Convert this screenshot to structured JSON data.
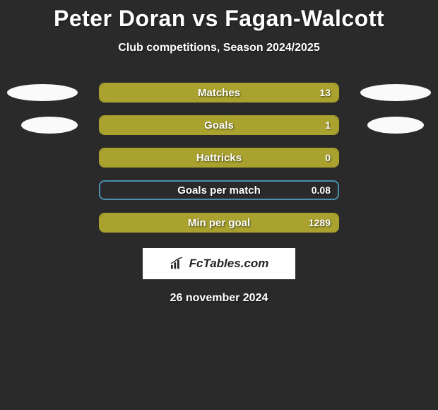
{
  "title": "Peter Doran vs Fagan-Walcott",
  "subtitle": "Club competitions, Season 2024/2025",
  "colors": {
    "bar_fill": "#a9a22e",
    "bar_border": "#a9a22e",
    "bar_border_alt": "#4a8fb0",
    "ellipse": "#fafafa"
  },
  "stats": [
    {
      "label": "Matches",
      "value": "13",
      "fill_pct": 100,
      "border": "#a9a22e",
      "show_left_ellipse": true,
      "show_right_ellipse": true,
      "ellipse_small": false
    },
    {
      "label": "Goals",
      "value": "1",
      "fill_pct": 100,
      "border": "#a9a22e",
      "show_left_ellipse": true,
      "show_right_ellipse": true,
      "ellipse_small": true
    },
    {
      "label": "Hattricks",
      "value": "0",
      "fill_pct": 100,
      "border": "#a9a22e",
      "show_left_ellipse": false,
      "show_right_ellipse": false,
      "ellipse_small": false
    },
    {
      "label": "Goals per match",
      "value": "0.08",
      "fill_pct": 0,
      "border": "#4a8fb0",
      "show_left_ellipse": false,
      "show_right_ellipse": false,
      "ellipse_small": false
    },
    {
      "label": "Min per goal",
      "value": "1289",
      "fill_pct": 100,
      "border": "#a9a22e",
      "show_left_ellipse": false,
      "show_right_ellipse": false,
      "ellipse_small": false
    }
  ],
  "logo_text": "FcTables.com",
  "date": "26 november 2024"
}
